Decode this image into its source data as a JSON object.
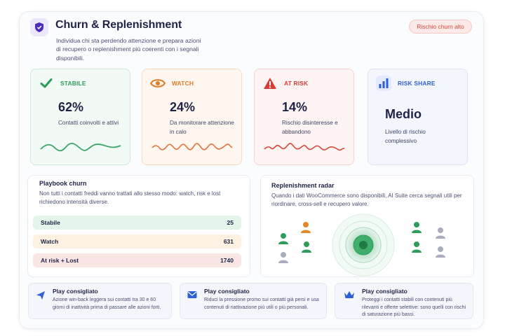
{
  "header": {
    "title": "Churn & Replenishment",
    "subtitle": "Individua chi sta perdendo attenzione e prepara azioni di recupero o replenishment più coerenti con i segnali disponibili.",
    "badge": "Rischio churn alto",
    "logo_icon": "shield-icon"
  },
  "kpis": [
    {
      "label": "STABILE",
      "value": "62%",
      "desc": "Contatti coinvolti e attivi",
      "icon": "check-icon",
      "color": "#2e9d5b"
    },
    {
      "label": "WATCH",
      "value": "24%",
      "desc": "Da monitorare attenzione in calo",
      "icon": "eye-icon",
      "color": "#e07a22"
    },
    {
      "label": "AT RISK",
      "value": "14%",
      "desc": "Rischio disinteresse e abbandono",
      "icon": "warning-icon",
      "color": "#d63b34"
    },
    {
      "label": "RISK SHARE",
      "value": "Medio",
      "desc": "Livello di rischio complessivo",
      "icon": "bar-chart-icon",
      "color": "#2f5fd6"
    }
  ],
  "playbook": {
    "title": "Playbook churn",
    "text": "Non tutti i contatti freddi vanno trattati allo stesso modo: watch, risk e lost richiedono intensità diverse.",
    "rows": [
      {
        "label": "Stabile",
        "value": "25"
      },
      {
        "label": "Watch",
        "value": "631"
      },
      {
        "label": "At risk + Lost",
        "value": "1740"
      }
    ]
  },
  "radar": {
    "title": "Replenishment radar",
    "text": "Quando i dati WooCommerce sono disponibili, AI Suite cerca segnali utili per riordinare, cross-sell e recupero valore."
  },
  "plays": [
    {
      "title": "Play consigliato",
      "text": "Azione win-back leggera sui contatti tra 30 e 60 giorni di inattività prima di passare alle azioni forti.",
      "icon": "send-icon"
    },
    {
      "title": "Play consigliato",
      "text": "Riduci la pressione promo sui contatti già persi e usa contenuti di riattivazione più utili o più personali.",
      "icon": "mail-icon"
    },
    {
      "title": "Play consigliato",
      "text": "Proteggi i contatti stabili con contenuti più rilevanti e offerte selettive: sono quelli con rischi di saturazione più bassi.",
      "icon": "crown-icon"
    }
  ]
}
